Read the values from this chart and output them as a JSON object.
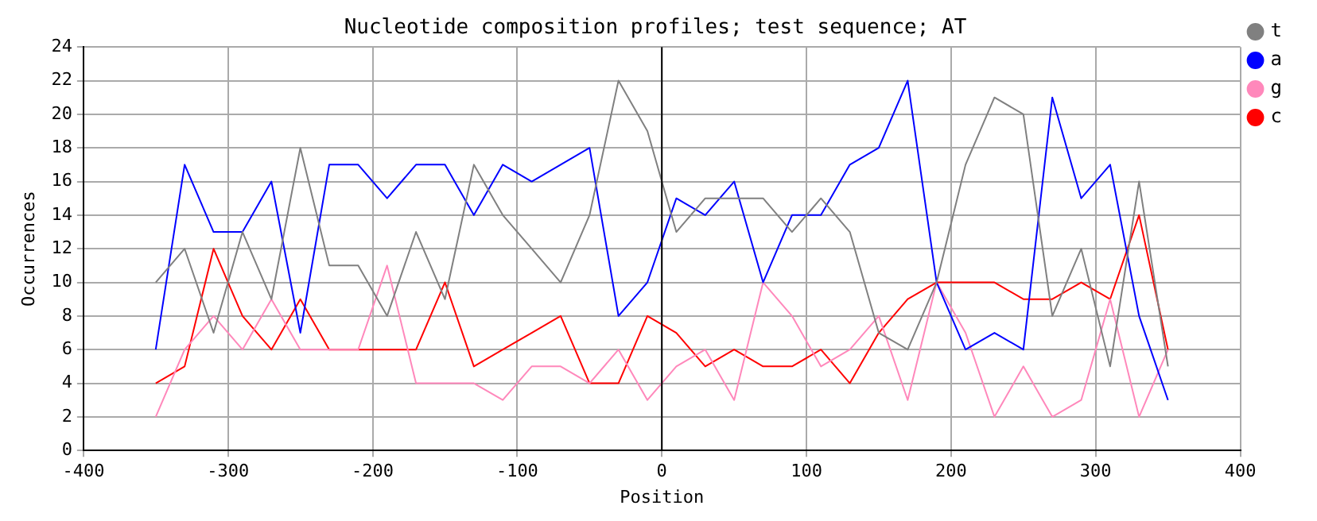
{
  "chart_data": {
    "type": "line",
    "title": "Nucleotide composition profiles; test sequence; AT",
    "xlabel": "Position",
    "ylabel": "Occurrences",
    "x": [
      -350,
      -330,
      -310,
      -290,
      -270,
      -250,
      -230,
      -210,
      -190,
      -170,
      -150,
      -130,
      -110,
      -90,
      -70,
      -50,
      -30,
      -10,
      10,
      30,
      50,
      70,
      90,
      110,
      130,
      150,
      170,
      190,
      210,
      230,
      250,
      270,
      290,
      310,
      330,
      350
    ],
    "series": [
      {
        "name": "t",
        "color": "#808080",
        "values": [
          10,
          12,
          7,
          13,
          9,
          18,
          11,
          11,
          8,
          13,
          9,
          17,
          14,
          12,
          10,
          14,
          22,
          19,
          13,
          15,
          15,
          15,
          13,
          15,
          13,
          7,
          6,
          10,
          17,
          21,
          20,
          8,
          12,
          5,
          16,
          5
        ]
      },
      {
        "name": "a",
        "color": "#0000ff",
        "values": [
          6,
          17,
          13,
          13,
          16,
          7,
          17,
          17,
          15,
          17,
          17,
          14,
          17,
          16,
          17,
          18,
          8,
          10,
          15,
          14,
          16,
          10,
          14,
          14,
          17,
          18,
          22,
          10,
          6,
          7,
          6,
          21,
          15,
          17,
          8,
          3
        ]
      },
      {
        "name": "g",
        "color": "#ff88bb",
        "values": [
          2,
          6,
          8,
          6,
          9,
          6,
          6,
          6,
          11,
          4,
          4,
          4,
          3,
          5,
          5,
          4,
          6,
          3,
          5,
          6,
          3,
          10,
          8,
          5,
          6,
          8,
          3,
          10,
          7,
          2,
          5,
          2,
          3,
          9,
          2,
          6
        ]
      },
      {
        "name": "c",
        "color": "#ff0000",
        "values": [
          4,
          5,
          12,
          8,
          6,
          9,
          6,
          6,
          6,
          6,
          10,
          5,
          6,
          7,
          8,
          4,
          4,
          8,
          7,
          5,
          6,
          5,
          5,
          6,
          4,
          7,
          9,
          10,
          10,
          10,
          9,
          9,
          10,
          9,
          14,
          6
        ]
      }
    ],
    "xlim": [
      -400,
      400
    ],
    "xticks": [
      -400,
      -300,
      -200,
      -100,
      0,
      100,
      200,
      300,
      400
    ],
    "ylim": [
      0,
      24
    ],
    "yticks": [
      0,
      2,
      4,
      6,
      8,
      10,
      12,
      14,
      16,
      18,
      20,
      22,
      24
    ],
    "ref_lines": [
      {
        "axis": "x",
        "value": 0,
        "color": "#000000"
      }
    ],
    "grid": true,
    "legend": "top right",
    "marker": "none",
    "line_style": "solid"
  }
}
